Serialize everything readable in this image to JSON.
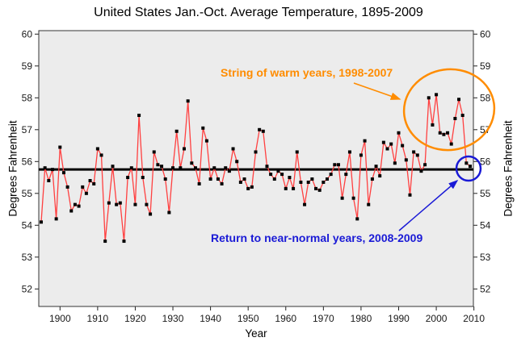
{
  "title": "United States Jan.-Oct. Average Temperature, 1895-2009",
  "axes": {
    "x_label": "Year",
    "y_label_left": "Degrees Fahrenheit",
    "y_label_right": "Degrees Fahrenheit"
  },
  "annotations": {
    "warm_string": {
      "text": "String of warm years, 1998-2007",
      "color": "#ff8c00"
    },
    "near_normal": {
      "text": "Return to near-normal years, 2008-2009",
      "color": "#1a1ad6"
    }
  },
  "colors": {
    "series_line": "#ff4040",
    "marker": "#000000",
    "mean_line": "#000000",
    "plot_bg": "#ececec",
    "plot_border": "#333333",
    "tick": "#222222",
    "tick_label": "#1a1a1a"
  },
  "chart_data": {
    "type": "line",
    "title": "United States Jan.-Oct. Average Temperature, 1895-2009",
    "xlabel": "Year",
    "ylabel": "Degrees Fahrenheit",
    "grid": false,
    "legend": "none",
    "xlim": [
      1894,
      2010.5
    ],
    "ylim": [
      52,
      60
    ],
    "x_ticks": [
      1900,
      1910,
      1920,
      1930,
      1940,
      1950,
      1960,
      1970,
      1980,
      1990,
      2000,
      2010
    ],
    "y_ticks": [
      60,
      59,
      58,
      57,
      56,
      55,
      54,
      53,
      52
    ],
    "mean_line": 55.75,
    "years": [
      1895,
      1896,
      1897,
      1898,
      1899,
      1900,
      1901,
      1902,
      1903,
      1904,
      1905,
      1906,
      1907,
      1908,
      1909,
      1910,
      1911,
      1912,
      1913,
      1914,
      1915,
      1916,
      1917,
      1918,
      1919,
      1920,
      1921,
      1922,
      1923,
      1924,
      1925,
      1926,
      1927,
      1928,
      1929,
      1930,
      1931,
      1932,
      1933,
      1934,
      1935,
      1936,
      1937,
      1938,
      1939,
      1940,
      1941,
      1942,
      1943,
      1944,
      1945,
      1946,
      1947,
      1948,
      1949,
      1950,
      1951,
      1952,
      1953,
      1954,
      1955,
      1956,
      1957,
      1958,
      1959,
      1960,
      1961,
      1962,
      1963,
      1964,
      1965,
      1966,
      1967,
      1968,
      1969,
      1970,
      1971,
      1972,
      1973,
      1974,
      1975,
      1976,
      1977,
      1978,
      1979,
      1980,
      1981,
      1982,
      1983,
      1984,
      1985,
      1986,
      1987,
      1988,
      1989,
      1990,
      1991,
      1992,
      1993,
      1994,
      1995,
      1996,
      1997,
      1998,
      1999,
      2000,
      2001,
      2002,
      2003,
      2004,
      2005,
      2006,
      2007,
      2008,
      2009
    ],
    "values": [
      54.1,
      55.8,
      55.4,
      55.75,
      54.2,
      56.45,
      55.65,
      55.2,
      54.45,
      54.65,
      54.6,
      55.2,
      55.0,
      55.4,
      55.3,
      56.4,
      56.2,
      53.5,
      54.7,
      55.85,
      54.65,
      54.7,
      53.5,
      55.5,
      55.8,
      54.65,
      57.45,
      55.5,
      54.65,
      54.35,
      56.3,
      55.9,
      55.85,
      55.45,
      54.4,
      55.8,
      56.95,
      55.8,
      56.4,
      57.9,
      55.95,
      55.8,
      55.3,
      57.05,
      56.65,
      55.45,
      55.8,
      55.45,
      55.3,
      55.8,
      55.7,
      56.4,
      56.0,
      55.35,
      55.45,
      55.15,
      55.2,
      56.3,
      57.0,
      56.95,
      55.85,
      55.6,
      55.45,
      55.7,
      55.6,
      55.15,
      55.5,
      55.15,
      56.3,
      55.35,
      54.65,
      55.35,
      55.45,
      55.15,
      55.1,
      55.35,
      55.45,
      55.6,
      55.9,
      55.9,
      54.85,
      55.6,
      56.3,
      54.85,
      54.2,
      56.2,
      56.65,
      54.65,
      55.45,
      55.85,
      55.55,
      56.6,
      56.4,
      56.55,
      55.95,
      56.9,
      56.5,
      56.05,
      54.95,
      56.3,
      56.2,
      55.7,
      55.9,
      58.0,
      57.15,
      58.1,
      56.9,
      56.85,
      56.9,
      56.55,
      57.35,
      57.95,
      57.45,
      55.95,
      55.85
    ]
  }
}
